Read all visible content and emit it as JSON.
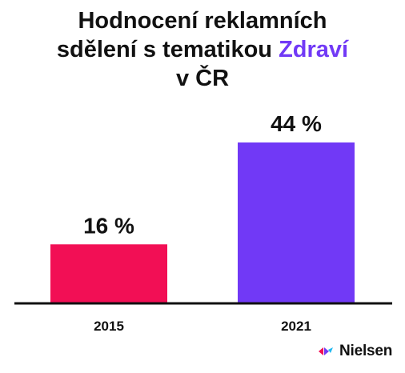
{
  "chart_data": {
    "type": "bar",
    "title_lines": [
      "Hodnocení reklamních",
      "sdělení s tematikou ",
      "v ČR"
    ],
    "title_highlight": "Zdraví",
    "categories": [
      "2015",
      "2021"
    ],
    "values": [
      16,
      44
    ],
    "value_labels": [
      "16 %",
      "44 %"
    ],
    "bar_colors": [
      "#f20f55",
      "#7139f6"
    ],
    "title_highlight_color": "#7139f6",
    "ylim": [
      0,
      50
    ],
    "grid": false,
    "xlabel": "",
    "ylabel": ""
  },
  "logo": {
    "text": "Nielsen",
    "icon": "nielsen-logo-icon"
  }
}
